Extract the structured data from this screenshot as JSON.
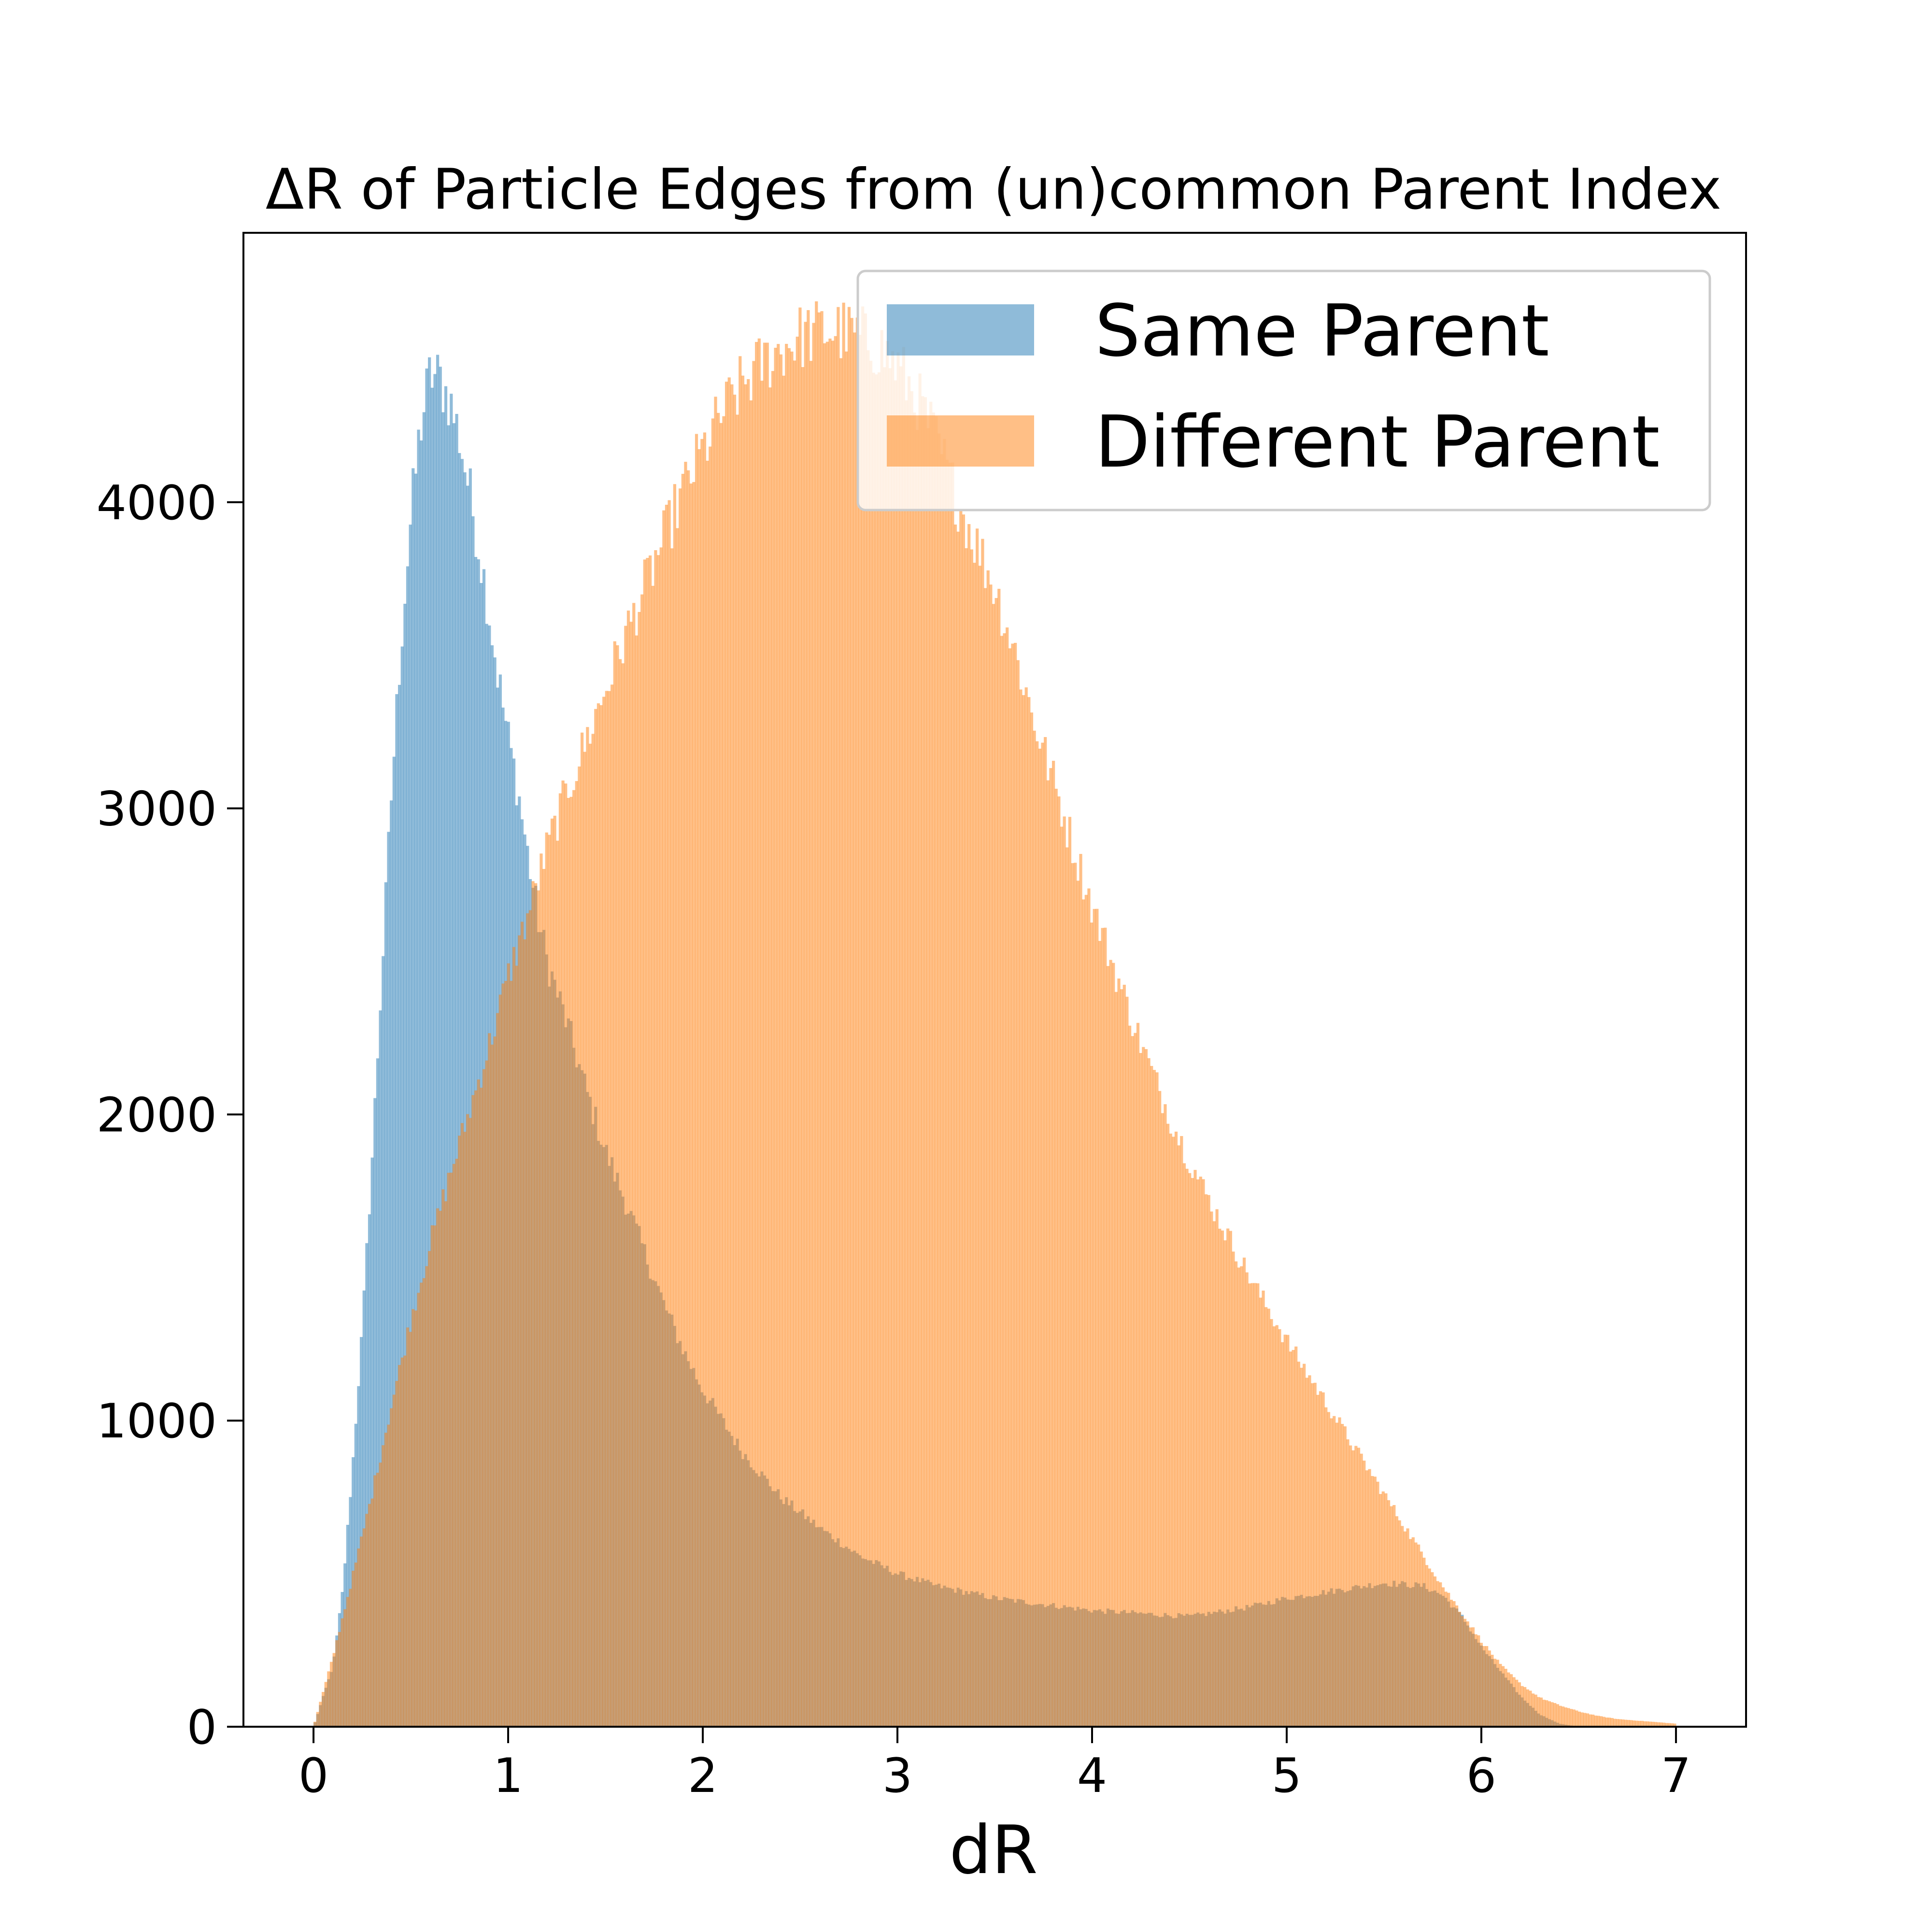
{
  "chart_data": {
    "type": "histogram",
    "title": "ΔR of Particle Edges from (un)common Parent Index",
    "xlabel": "dR",
    "ylabel": "",
    "xlim": [
      -0.36,
      7.36
    ],
    "ylim": [
      0,
      4880
    ],
    "bin_width": 0.014,
    "grid": false,
    "legend_position": "top-right",
    "x_ticks": [
      "0",
      "1",
      "2",
      "3",
      "4",
      "5",
      "6",
      "7"
    ],
    "y_ticks": [
      "0",
      "1000",
      "2000",
      "3000",
      "4000"
    ],
    "series": [
      {
        "name": "Same Parent",
        "color": "#1f77b4",
        "opacity": 0.5,
        "profile": [
          [
            0.0,
            0
          ],
          [
            0.1,
            200
          ],
          [
            0.15,
            450
          ],
          [
            0.2,
            850
          ],
          [
            0.25,
            1300
          ],
          [
            0.3,
            1850
          ],
          [
            0.35,
            2450
          ],
          [
            0.4,
            3050
          ],
          [
            0.45,
            3550
          ],
          [
            0.5,
            3950
          ],
          [
            0.55,
            4250
          ],
          [
            0.6,
            4420
          ],
          [
            0.65,
            4400
          ],
          [
            0.7,
            4330
          ],
          [
            0.75,
            4210
          ],
          [
            0.8,
            4040
          ],
          [
            0.85,
            3850
          ],
          [
            0.9,
            3650
          ],
          [
            0.95,
            3420
          ],
          [
            1.0,
            3230
          ],
          [
            1.05,
            3060
          ],
          [
            1.1,
            2850
          ],
          [
            1.15,
            2650
          ],
          [
            1.2,
            2500
          ],
          [
            1.3,
            2300
          ],
          [
            1.4,
            2080
          ],
          [
            1.5,
            1880
          ],
          [
            1.6,
            1720
          ],
          [
            1.7,
            1550
          ],
          [
            1.8,
            1380
          ],
          [
            1.9,
            1230
          ],
          [
            2.0,
            1100
          ],
          [
            2.2,
            900
          ],
          [
            2.4,
            750
          ],
          [
            2.6,
            650
          ],
          [
            2.8,
            560
          ],
          [
            3.0,
            500
          ],
          [
            3.2,
            460
          ],
          [
            3.5,
            420
          ],
          [
            4.0,
            380
          ],
          [
            4.5,
            360
          ],
          [
            4.8,
            390
          ],
          [
            5.0,
            420
          ],
          [
            5.2,
            440
          ],
          [
            5.5,
            470
          ],
          [
            5.7,
            460
          ],
          [
            5.8,
            430
          ],
          [
            5.9,
            360
          ],
          [
            6.0,
            260
          ],
          [
            6.1,
            180
          ],
          [
            6.2,
            100
          ],
          [
            6.3,
            40
          ],
          [
            6.4,
            10
          ],
          [
            6.5,
            0
          ],
          [
            7.0,
            0
          ]
        ]
      },
      {
        "name": "Different Parent",
        "color": "#ff7f0e",
        "opacity": 0.5,
        "profile": [
          [
            0.0,
            0
          ],
          [
            0.1,
            230
          ],
          [
            0.2,
            490
          ],
          [
            0.3,
            760
          ],
          [
            0.4,
            1050
          ],
          [
            0.5,
            1330
          ],
          [
            0.6,
            1580
          ],
          [
            0.7,
            1800
          ],
          [
            0.8,
            2010
          ],
          [
            0.9,
            2220
          ],
          [
            1.0,
            2450
          ],
          [
            1.1,
            2650
          ],
          [
            1.2,
            2870
          ],
          [
            1.3,
            3050
          ],
          [
            1.4,
            3220
          ],
          [
            1.5,
            3390
          ],
          [
            1.6,
            3560
          ],
          [
            1.7,
            3720
          ],
          [
            1.8,
            3880
          ],
          [
            1.9,
            4040
          ],
          [
            2.0,
            4170
          ],
          [
            2.1,
            4290
          ],
          [
            2.2,
            4380
          ],
          [
            2.3,
            4450
          ],
          [
            2.4,
            4500
          ],
          [
            2.5,
            4540
          ],
          [
            2.6,
            4560
          ],
          [
            2.7,
            4560
          ],
          [
            2.8,
            4540
          ],
          [
            2.9,
            4510
          ],
          [
            3.0,
            4440
          ],
          [
            3.1,
            4340
          ],
          [
            3.2,
            4200
          ],
          [
            3.3,
            4020
          ],
          [
            3.4,
            3870
          ],
          [
            3.5,
            3720
          ],
          [
            3.6,
            3520
          ],
          [
            3.7,
            3290
          ],
          [
            3.8,
            3090
          ],
          [
            3.9,
            2880
          ],
          [
            4.0,
            2680
          ],
          [
            4.1,
            2500
          ],
          [
            4.2,
            2320
          ],
          [
            4.3,
            2150
          ],
          [
            4.4,
            1990
          ],
          [
            4.5,
            1850
          ],
          [
            4.6,
            1720
          ],
          [
            4.7,
            1600
          ],
          [
            4.8,
            1480
          ],
          [
            4.9,
            1370
          ],
          [
            5.0,
            1260
          ],
          [
            5.1,
            1160
          ],
          [
            5.2,
            1060
          ],
          [
            5.3,
            960
          ],
          [
            5.4,
            860
          ],
          [
            5.5,
            760
          ],
          [
            5.6,
            660
          ],
          [
            5.7,
            560
          ],
          [
            5.8,
            460
          ],
          [
            5.9,
            370
          ],
          [
            6.0,
            280
          ],
          [
            6.1,
            200
          ],
          [
            6.2,
            140
          ],
          [
            6.3,
            95
          ],
          [
            6.4,
            70
          ],
          [
            6.5,
            50
          ],
          [
            6.6,
            35
          ],
          [
            6.7,
            25
          ],
          [
            6.8,
            20
          ],
          [
            6.9,
            15
          ],
          [
            7.0,
            10
          ]
        ]
      }
    ]
  }
}
